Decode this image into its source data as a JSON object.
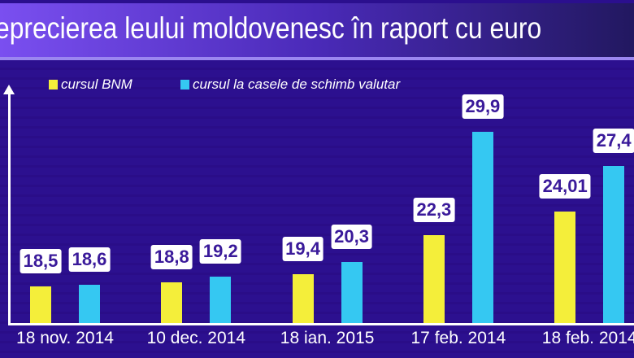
{
  "chart_data": {
    "type": "bar",
    "title": "eprecierea leului moldovenesc în raport cu euro",
    "categories": [
      "18 nov. 2014",
      "10 dec. 2014",
      "18 ian. 2015",
      "17 feb. 2014",
      "18 feb. 2014"
    ],
    "series": [
      {
        "name": "cursul BNM",
        "color": "#f4ee3a",
        "values": [
          18.5,
          18.8,
          19.4,
          22.3,
          24.01
        ],
        "labels": [
          "18,5",
          "18,8",
          "19,4",
          "22,3",
          "24,01"
        ]
      },
      {
        "name": "cursul la casele de schimb valutar",
        "color": "#35c8f2",
        "values": [
          18.6,
          19.2,
          20.3,
          29.9,
          27.4
        ],
        "labels": [
          "18,6",
          "19,2",
          "20,3",
          "29,9",
          "27,4"
        ]
      }
    ],
    "legend": "top-left",
    "grid": false
  }
}
